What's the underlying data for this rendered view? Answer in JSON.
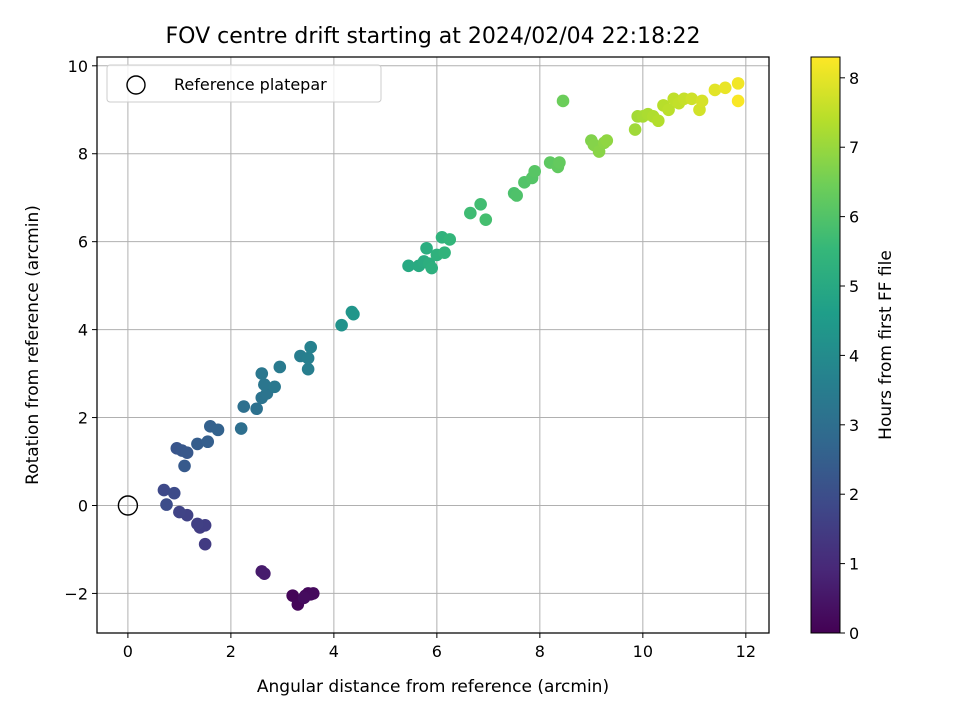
{
  "chart_data": {
    "type": "scatter",
    "title": "FOV centre drift starting at 2024/02/04 22:18:22",
    "xlabel": "Angular distance from reference (arcmin)",
    "ylabel": "Rotation from reference (arcmin)",
    "xlim": [
      -0.6,
      12.45
    ],
    "ylim": [
      -2.9,
      10.2
    ],
    "xticks": [
      0,
      2,
      4,
      6,
      8,
      10,
      12
    ],
    "yticks": [
      -2,
      0,
      2,
      4,
      6,
      8,
      10
    ],
    "xtick_labels": [
      "0",
      "2",
      "4",
      "6",
      "8",
      "10",
      "12"
    ],
    "ytick_labels": [
      "−2",
      "0",
      "2",
      "4",
      "6",
      "8",
      "10"
    ],
    "grid": true,
    "legend": {
      "placement": "top-left",
      "entries": [
        {
          "label": "Reference platepar",
          "marker": "open-circle"
        }
      ]
    },
    "reference_point": {
      "x": 0,
      "y": 0
    },
    "colorbar": {
      "label": "Hours from first FF file",
      "min": 0,
      "max": 8.3,
      "ticks": [
        0,
        1,
        2,
        3,
        4,
        5,
        6,
        7,
        8
      ],
      "colormap": "viridis",
      "colors": [
        "#440154",
        "#482878",
        "#3e4989",
        "#31688e",
        "#26828e",
        "#1f9e89",
        "#35b779",
        "#6ece58",
        "#b5de2b",
        "#fde725"
      ]
    },
    "series": [
      {
        "x": [
          3.2,
          3.3,
          3.45,
          3.5,
          3.55,
          3.6,
          3.42,
          2.6,
          2.65,
          1.5,
          1.4,
          1.5,
          1.35,
          1.15,
          1.0,
          0.7,
          0.9,
          0.75,
          0.95,
          1.05,
          1.15,
          1.1,
          1.35,
          1.55,
          1.6,
          1.75,
          2.2,
          2.25,
          2.5,
          2.6,
          2.7,
          2.65,
          2.6,
          2.85,
          2.95,
          3.35,
          3.5,
          3.5,
          3.55,
          4.15,
          4.35,
          4.38,
          5.45,
          5.65,
          5.75,
          5.8,
          5.85,
          5.9,
          6.0,
          6.1,
          6.15,
          6.25,
          6.65,
          6.85,
          6.95,
          7.5,
          7.55,
          7.7,
          7.85,
          7.9,
          8.2,
          8.35,
          8.38,
          8.45,
          9.0,
          9.05,
          9.15,
          9.25,
          9.3,
          9.85,
          9.9,
          10.0,
          10.1,
          10.2,
          10.3,
          10.4,
          10.5,
          10.6,
          10.7,
          10.8,
          10.95,
          11.1,
          11.15,
          11.4,
          11.6,
          11.85,
          11.85
        ],
        "y": [
          -2.05,
          -2.25,
          -2.05,
          -2.0,
          -2.02,
          -2.0,
          -2.1,
          -1.5,
          -1.55,
          -0.88,
          -0.5,
          -0.45,
          -0.42,
          -0.22,
          -0.15,
          0.35,
          0.28,
          0.02,
          1.3,
          1.25,
          1.2,
          0.9,
          1.4,
          1.45,
          1.8,
          1.72,
          1.75,
          2.25,
          2.2,
          2.45,
          2.55,
          2.75,
          3.0,
          2.7,
          3.15,
          3.4,
          3.1,
          3.35,
          3.6,
          4.1,
          4.4,
          4.35,
          5.45,
          5.45,
          5.55,
          5.85,
          5.5,
          5.4,
          5.7,
          6.1,
          5.75,
          6.05,
          6.65,
          6.85,
          6.5,
          7.1,
          7.05,
          7.35,
          7.45,
          7.6,
          7.8,
          7.7,
          7.8,
          9.2,
          8.3,
          8.2,
          8.05,
          8.25,
          8.3,
          8.55,
          8.85,
          8.85,
          8.9,
          8.85,
          8.75,
          9.1,
          9.0,
          9.25,
          9.15,
          9.25,
          9.25,
          9.0,
          9.2,
          9.45,
          9.5,
          9.6,
          9.2
        ],
        "hours": [
          0.1,
          0.12,
          0.15,
          0.18,
          0.2,
          0.22,
          0.25,
          0.6,
          0.65,
          1.45,
          1.5,
          1.55,
          1.6,
          1.65,
          1.7,
          1.85,
          1.9,
          1.95,
          2.2,
          2.25,
          2.3,
          2.35,
          2.45,
          2.5,
          2.55,
          2.6,
          3.0,
          3.05,
          3.1,
          3.15,
          3.2,
          3.25,
          3.3,
          3.35,
          3.4,
          3.5,
          3.55,
          3.6,
          3.65,
          4.2,
          4.3,
          4.35,
          5.0,
          5.05,
          5.1,
          5.15,
          5.2,
          5.25,
          5.3,
          5.35,
          5.4,
          5.45,
          5.7,
          5.75,
          5.8,
          5.9,
          5.95,
          6.0,
          6.05,
          6.1,
          6.2,
          6.25,
          6.3,
          6.4,
          6.7,
          6.75,
          6.8,
          6.85,
          6.9,
          7.1,
          7.15,
          7.2,
          7.25,
          7.3,
          7.35,
          7.4,
          7.45,
          7.5,
          7.55,
          7.6,
          7.7,
          7.75,
          7.8,
          7.95,
          8.05,
          8.15,
          8.25
        ]
      }
    ]
  }
}
